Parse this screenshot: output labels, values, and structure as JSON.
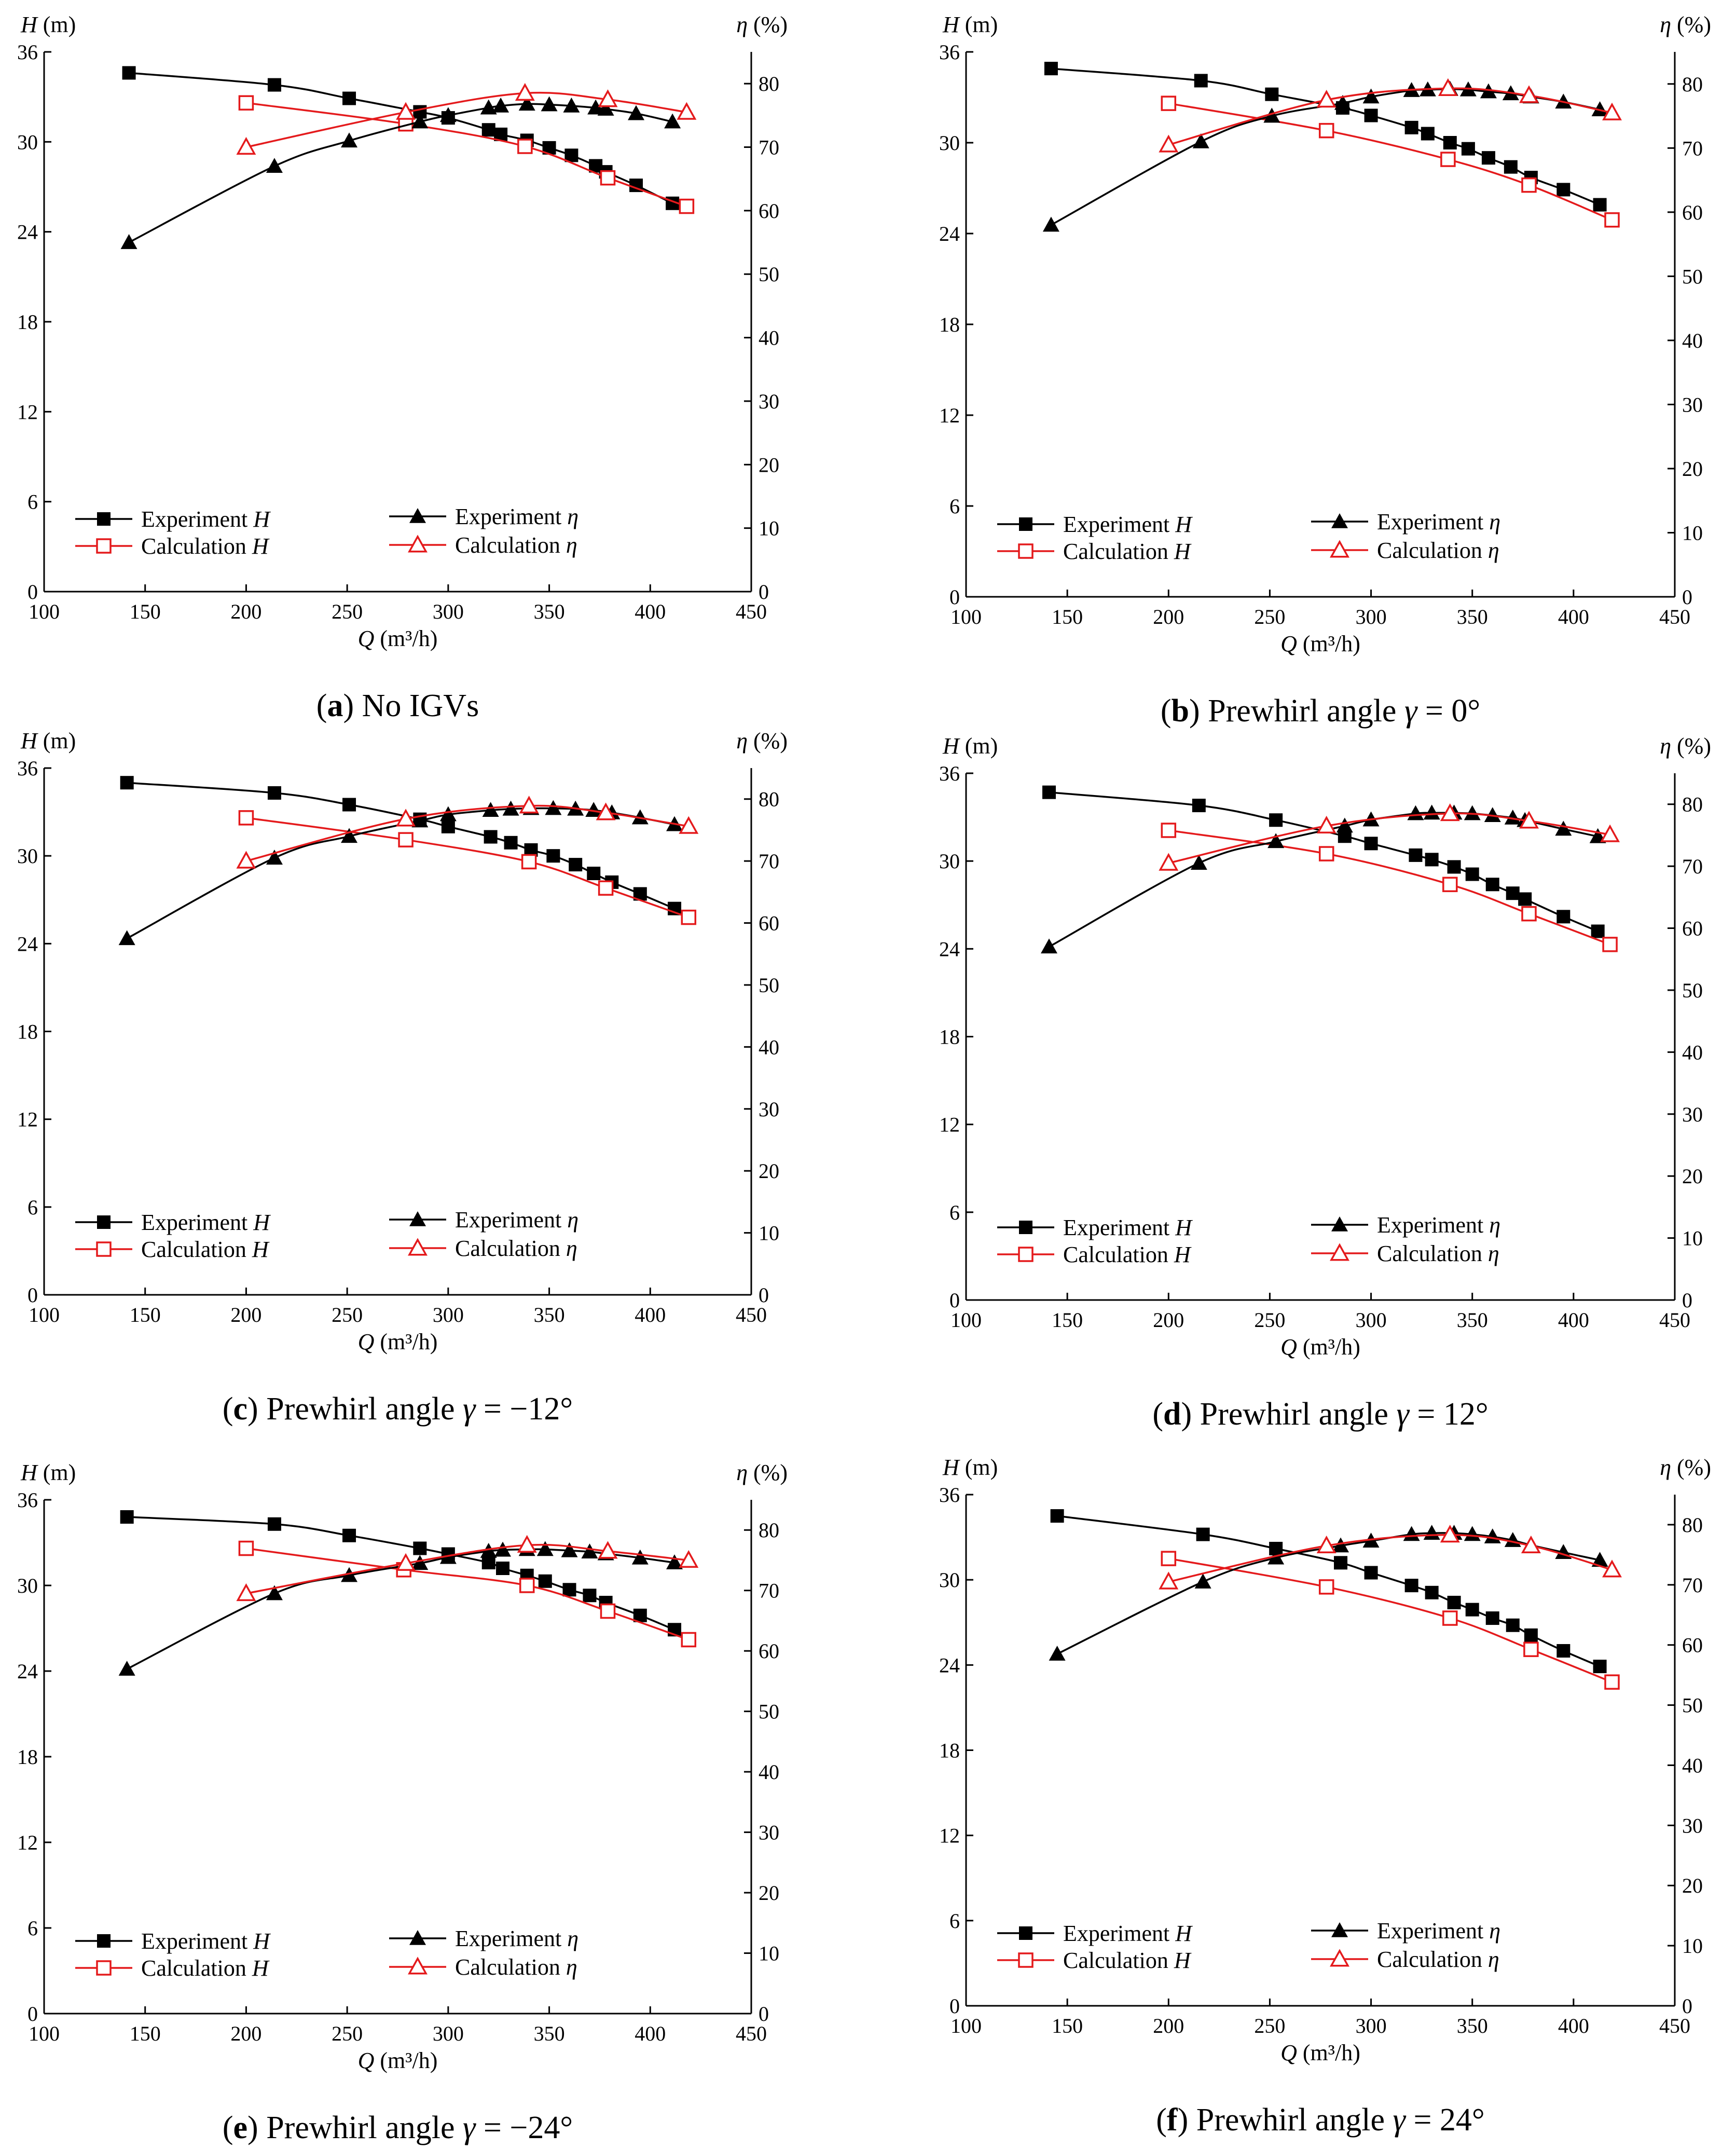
{
  "chart_data": [
    {
      "type": "line",
      "caption": {
        "letter": "a",
        "text": "No IGVs"
      },
      "x_axis": {
        "label_var": "Q",
        "label_unit": "(m³/h)",
        "range": [
          100,
          450
        ],
        "ticks": [
          "100",
          "150",
          "200",
          "250",
          "300",
          "350",
          "400",
          "450"
        ]
      },
      "y_left": {
        "label_var": "H",
        "label_unit": "(m)",
        "range": [
          0,
          36
        ],
        "ticks": [
          "0",
          "6",
          "12",
          "18",
          "24",
          "30",
          "36"
        ]
      },
      "y_right": {
        "label_var": "η",
        "label_unit": "(%)",
        "range": [
          0,
          85
        ],
        "ticks": [
          "0",
          "10",
          "20",
          "30",
          "40",
          "50",
          "60",
          "70",
          "80"
        ]
      },
      "series": [
        {
          "name": "Experiment",
          "name_var": "H",
          "axis": "left",
          "marker": "square-filled",
          "color": "#000000",
          "x": [
            142,
            214,
            251,
            286,
            300,
            320,
            326,
            339,
            350,
            361,
            373,
            378,
            393,
            411
          ],
          "y": [
            34.6,
            33.8,
            32.9,
            32.0,
            31.6,
            30.8,
            30.5,
            30.1,
            29.6,
            29.1,
            28.4,
            28.0,
            27.1,
            25.9
          ]
        },
        {
          "name": "Calculation",
          "name_var": "H",
          "axis": "left",
          "marker": "square-open",
          "color": "#e41a1c",
          "x": [
            200,
            279,
            338,
            379,
            418
          ],
          "y": [
            32.6,
            31.2,
            29.7,
            27.6,
            25.7
          ]
        },
        {
          "name": "Experiment",
          "name_var": "η",
          "axis": "right",
          "marker": "triangle-filled",
          "color": "#000000",
          "x": [
            142,
            214,
            251,
            286,
            300,
            320,
            326,
            339,
            350,
            361,
            373,
            378,
            393,
            411
          ],
          "y": [
            55,
            67,
            71,
            74,
            75,
            76.2,
            76.5,
            76.8,
            76.7,
            76.5,
            76.2,
            76.0,
            75.3,
            74.0
          ]
        },
        {
          "name": "Calculation",
          "name_var": "η",
          "axis": "right",
          "marker": "triangle-open",
          "color": "#e41a1c",
          "x": [
            200,
            279,
            338,
            379,
            418
          ],
          "y": [
            70,
            75.5,
            78.5,
            77.5,
            75.5
          ]
        }
      ]
    },
    {
      "type": "line",
      "caption": {
        "letter": "b",
        "text": "Prewhirl angle",
        "var": "γ",
        "value": "= 0°"
      },
      "x_axis": {
        "label_var": "Q",
        "label_unit": "(m³/h)",
        "range": [
          100,
          450
        ],
        "ticks": [
          "100",
          "150",
          "200",
          "250",
          "300",
          "350",
          "400",
          "450"
        ]
      },
      "y_left": {
        "label_var": "H",
        "label_unit": "(m)",
        "range": [
          0,
          36
        ],
        "ticks": [
          "0",
          "6",
          "12",
          "18",
          "24",
          "30",
          "36"
        ]
      },
      "y_right": {
        "label_var": "η",
        "label_unit": "(%)",
        "range": [
          0,
          85
        ],
        "ticks": [
          "0",
          "10",
          "20",
          "30",
          "40",
          "50",
          "60",
          "70",
          "80"
        ]
      },
      "series": [
        {
          "name": "Experiment",
          "name_var": "H",
          "axis": "left",
          "marker": "square-filled",
          "color": "#000000",
          "x": [
            142,
            216,
            251,
            286,
            300,
            320,
            328,
            339,
            348,
            358,
            369,
            379,
            395,
            413
          ],
          "y": [
            34.9,
            34.1,
            33.2,
            32.3,
            31.8,
            31.0,
            30.6,
            30.0,
            29.6,
            29.0,
            28.4,
            27.7,
            26.9,
            25.9
          ]
        },
        {
          "name": "Calculation",
          "name_var": "H",
          "axis": "left",
          "marker": "square-open",
          "color": "#e41a1c",
          "x": [
            200,
            278,
            338,
            378,
            419
          ],
          "y": [
            32.6,
            30.8,
            28.9,
            27.2,
            24.9
          ]
        },
        {
          "name": "Experiment",
          "name_var": "η",
          "axis": "right",
          "marker": "triangle-filled",
          "color": "#000000",
          "x": [
            142,
            216,
            251,
            286,
            300,
            320,
            328,
            339,
            348,
            358,
            369,
            379,
            395,
            413
          ],
          "y": [
            58,
            71,
            75,
            77,
            78,
            79,
            79.1,
            79.2,
            79.1,
            78.8,
            78.5,
            78.0,
            77.2,
            76.0
          ]
        },
        {
          "name": "Calculation",
          "name_var": "η",
          "axis": "right",
          "marker": "triangle-open",
          "color": "#e41a1c",
          "x": [
            200,
            278,
            338,
            378,
            419
          ],
          "y": [
            70.5,
            77.5,
            79.3,
            78.2,
            75.5
          ]
        }
      ]
    },
    {
      "type": "line",
      "caption": {
        "letter": "c",
        "text": "Prewhirl angle",
        "var": "γ",
        "value": "= −12°"
      },
      "x_axis": {
        "label_var": "Q",
        "label_unit": "(m³/h)",
        "range": [
          100,
          450
        ],
        "ticks": [
          "100",
          "150",
          "200",
          "250",
          "300",
          "350",
          "400",
          "450"
        ]
      },
      "y_left": {
        "label_var": "H",
        "label_unit": "(m)",
        "range": [
          0,
          36
        ],
        "ticks": [
          "0",
          "6",
          "12",
          "18",
          "24",
          "30",
          "36"
        ]
      },
      "y_right": {
        "label_var": "η",
        "label_unit": "(%)",
        "range": [
          0,
          85
        ],
        "ticks": [
          "0",
          "10",
          "20",
          "30",
          "40",
          "50",
          "60",
          "70",
          "80"
        ]
      },
      "series": [
        {
          "name": "Experiment",
          "name_var": "H",
          "axis": "left",
          "marker": "square-filled",
          "color": "#000000",
          "x": [
            141,
            214,
            251,
            286,
            300,
            321,
            331,
            341,
            352,
            363,
            372,
            381,
            395,
            412
          ],
          "y": [
            35.0,
            34.3,
            33.5,
            32.5,
            32.0,
            31.3,
            30.9,
            30.4,
            30.0,
            29.4,
            28.8,
            28.2,
            27.4,
            26.4
          ]
        },
        {
          "name": "Calculation",
          "name_var": "H",
          "axis": "left",
          "marker": "square-open",
          "color": "#e41a1c",
          "x": [
            200,
            279,
            340,
            378,
            419
          ],
          "y": [
            32.6,
            31.1,
            29.6,
            27.8,
            25.8
          ]
        },
        {
          "name": "Experiment",
          "name_var": "η",
          "axis": "right",
          "marker": "triangle-filled",
          "color": "#000000",
          "x": [
            141,
            214,
            251,
            286,
            300,
            321,
            331,
            341,
            352,
            363,
            372,
            381,
            395,
            412
          ],
          "y": [
            57.5,
            70.5,
            74,
            76.5,
            77.5,
            78.2,
            78.4,
            78.5,
            78.5,
            78.4,
            78.2,
            77.8,
            77.0,
            75.9
          ]
        },
        {
          "name": "Calculation",
          "name_var": "η",
          "axis": "right",
          "marker": "triangle-open",
          "color": "#e41a1c",
          "x": [
            200,
            279,
            340,
            378,
            419
          ],
          "y": [
            70,
            76.8,
            78.9,
            77.8,
            75.6
          ]
        }
      ]
    },
    {
      "type": "line",
      "caption": {
        "letter": "d",
        "text": "Prewhirl angle",
        "var": "γ",
        "value": "= 12°"
      },
      "x_axis": {
        "label_var": "Q",
        "label_unit": "(m³/h)",
        "range": [
          100,
          450
        ],
        "ticks": [
          "100",
          "150",
          "200",
          "250",
          "300",
          "350",
          "400",
          "450"
        ]
      },
      "y_left": {
        "label_var": "H",
        "label_unit": "(m)",
        "range": [
          0,
          36
        ],
        "ticks": [
          "0",
          "6",
          "12",
          "18",
          "24",
          "30",
          "36"
        ]
      },
      "y_right": {
        "label_var": "η",
        "label_unit": "(%)",
        "range": [
          0,
          85
        ],
        "ticks": [
          "0",
          "10",
          "20",
          "30",
          "40",
          "50",
          "60",
          "70",
          "80"
        ]
      },
      "series": [
        {
          "name": "Experiment",
          "name_var": "H",
          "axis": "left",
          "marker": "square-filled",
          "color": "#000000",
          "x": [
            141,
            215,
            253,
            287,
            300,
            322,
            330,
            341,
            350,
            360,
            370,
            376,
            395,
            412
          ],
          "y": [
            34.7,
            33.8,
            32.8,
            31.7,
            31.2,
            30.4,
            30.1,
            29.6,
            29.1,
            28.4,
            27.8,
            27.4,
            26.2,
            25.2
          ]
        },
        {
          "name": "Calculation",
          "name_var": "H",
          "axis": "left",
          "marker": "square-open",
          "color": "#e41a1c",
          "x": [
            200,
            278,
            339,
            378,
            418
          ],
          "y": [
            32.1,
            30.5,
            28.4,
            26.4,
            24.3
          ]
        },
        {
          "name": "Experiment",
          "name_var": "η",
          "axis": "right",
          "marker": "triangle-filled",
          "color": "#000000",
          "x": [
            141,
            215,
            253,
            287,
            300,
            322,
            330,
            341,
            350,
            360,
            370,
            376,
            395,
            412
          ],
          "y": [
            57,
            70.5,
            74,
            76.5,
            77.5,
            78.5,
            78.6,
            78.6,
            78.5,
            78.2,
            77.8,
            77.4,
            76.0,
            74.8
          ]
        },
        {
          "name": "Calculation",
          "name_var": "η",
          "axis": "right",
          "marker": "triangle-open",
          "color": "#e41a1c",
          "x": [
            200,
            278,
            339,
            378,
            418
          ],
          "y": [
            70.5,
            76.5,
            78.5,
            77.3,
            75.1
          ]
        }
      ]
    },
    {
      "type": "line",
      "caption": {
        "letter": "e",
        "text": "Prewhirl angle",
        "var": "γ",
        "value": "= −24°"
      },
      "x_axis": {
        "label_var": "Q",
        "label_unit": "(m³/h)",
        "range": [
          100,
          450
        ],
        "ticks": [
          "100",
          "150",
          "200",
          "250",
          "300",
          "350",
          "400",
          "450"
        ]
      },
      "y_left": {
        "label_var": "H",
        "label_unit": "(m)",
        "range": [
          0,
          36
        ],
        "ticks": [
          "0",
          "6",
          "12",
          "18",
          "24",
          "30",
          "36"
        ]
      },
      "y_right": {
        "label_var": "η",
        "label_unit": "(%)",
        "range": [
          0,
          85
        ],
        "ticks": [
          "0",
          "10",
          "20",
          "30",
          "40",
          "50",
          "60",
          "70",
          "80"
        ]
      },
      "series": [
        {
          "name": "Experiment",
          "name_var": "H",
          "axis": "left",
          "marker": "square-filled",
          "color": "#000000",
          "x": [
            141,
            214,
            251,
            286,
            300,
            320,
            327,
            339,
            348,
            360,
            370,
            378,
            395,
            412
          ],
          "y": [
            34.8,
            34.3,
            33.5,
            32.6,
            32.2,
            31.6,
            31.2,
            30.7,
            30.3,
            29.7,
            29.3,
            28.8,
            27.9,
            26.9
          ]
        },
        {
          "name": "Calculation",
          "name_var": "H",
          "axis": "left",
          "marker": "square-open",
          "color": "#e41a1c",
          "x": [
            200,
            278,
            339,
            379,
            419
          ],
          "y": [
            32.6,
            31.1,
            30.0,
            28.2,
            26.2
          ]
        },
        {
          "name": "Experiment",
          "name_var": "η",
          "axis": "right",
          "marker": "triangle-filled",
          "color": "#000000",
          "x": [
            141,
            214,
            251,
            286,
            300,
            320,
            327,
            339,
            348,
            360,
            370,
            378,
            395,
            412
          ],
          "y": [
            57,
            69.5,
            72.5,
            74.5,
            75.5,
            76.5,
            76.7,
            76.8,
            76.8,
            76.6,
            76.4,
            76.1,
            75.4,
            74.6
          ]
        },
        {
          "name": "Calculation",
          "name_var": "η",
          "axis": "right",
          "marker": "triangle-open",
          "color": "#e41a1c",
          "x": [
            200,
            279,
            339,
            379,
            419
          ],
          "y": [
            69.5,
            74.5,
            77.5,
            76.5,
            75
          ]
        }
      ]
    },
    {
      "type": "line",
      "caption": {
        "letter": "f",
        "text": "Prewhirl angle",
        "var": "γ",
        "value": "= 24°"
      },
      "x_axis": {
        "label_var": "Q",
        "label_unit": "(m³/h)",
        "range": [
          100,
          450
        ],
        "ticks": [
          "100",
          "150",
          "200",
          "250",
          "300",
          "350",
          "400",
          "450"
        ]
      },
      "y_left": {
        "label_var": "H",
        "label_unit": "(m)",
        "range": [
          0,
          36
        ],
        "ticks": [
          "0",
          "6",
          "12",
          "18",
          "24",
          "30",
          "36"
        ]
      },
      "y_right": {
        "label_var": "η",
        "label_unit": "(%)",
        "range": [
          0,
          85
        ],
        "ticks": [
          "0",
          "10",
          "20",
          "30",
          "40",
          "50",
          "60",
          "70",
          "80"
        ]
      },
      "series": [
        {
          "name": "Experiment",
          "name_var": "H",
          "axis": "left",
          "marker": "square-filled",
          "color": "#000000",
          "x": [
            145,
            217,
            253,
            285,
            300,
            320,
            330,
            341,
            350,
            360,
            370,
            379,
            395,
            413
          ],
          "y": [
            34.5,
            33.2,
            32.2,
            31.2,
            30.5,
            29.6,
            29.1,
            28.4,
            27.9,
            27.3,
            26.8,
            26.1,
            25.0,
            23.9
          ]
        },
        {
          "name": "Calculation",
          "name_var": "H",
          "axis": "left",
          "marker": "square-open",
          "color": "#e41a1c",
          "x": [
            200,
            278,
            339,
            379,
            419
          ],
          "y": [
            31.5,
            29.5,
            27.3,
            25.1,
            22.8
          ]
        },
        {
          "name": "Experiment",
          "name_var": "η",
          "axis": "right",
          "marker": "triangle-filled",
          "color": "#000000",
          "x": [
            145,
            217,
            253,
            285,
            300,
            320,
            330,
            341,
            350,
            360,
            370,
            379,
            395,
            413
          ],
          "y": [
            58.5,
            70.5,
            74.5,
            76.5,
            77.3,
            78.4,
            78.6,
            78.6,
            78.4,
            78.0,
            77.4,
            76.6,
            75.4,
            74.1
          ]
        },
        {
          "name": "Calculation",
          "name_var": "η",
          "axis": "right",
          "marker": "triangle-open",
          "color": "#e41a1c",
          "x": [
            200,
            278,
            339,
            379,
            419
          ],
          "y": [
            70.5,
            76.5,
            78.3,
            76.5,
            72.5
          ]
        }
      ]
    }
  ]
}
